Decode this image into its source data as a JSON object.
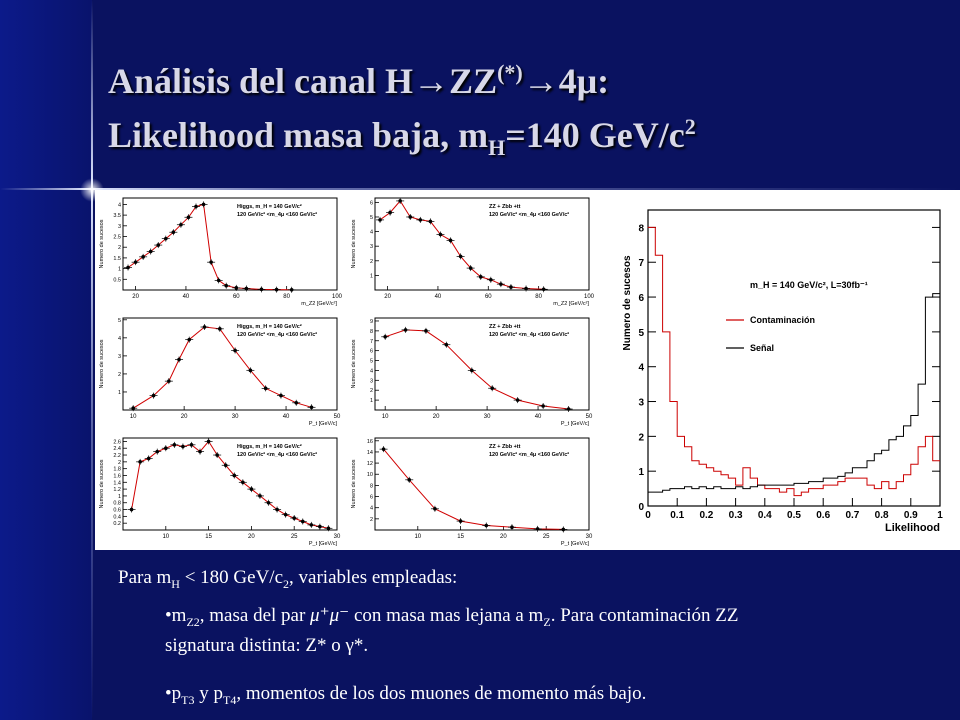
{
  "slide": {
    "title_line1_a": "Análisis del canal H→ZZ",
    "title_line1_sup": "(*)",
    "title_line1_b": "→4μ:",
    "title_line2_a": "Likelihood masa baja",
    "title_line2_b": ", m",
    "title_line2_sub": "H",
    "title_line2_c": "=140 GeV/c",
    "title_line2_sup": "2",
    "intro_a": "Para m",
    "intro_sub_h": "H",
    "intro_b": " < 180 GeV/c",
    "intro_sub_2": "2",
    "intro_c": ", variables empleadas:",
    "b1_a": "•m",
    "b1_sub": "Z2",
    "b1_b": ", masa del par ",
    "b1_mu": "μ⁺μ⁻",
    "b1_c": " con masa mas lejana a m",
    "b1_sub_z": "Z",
    "b1_d": ". Para contaminación ZZ",
    "b1_line2": "signatura distinta: Z* o γ*.",
    "b2_a": "•p",
    "b2_sub1": "T3",
    "b2_b": " y p",
    "b2_sub2": "T4",
    "b2_c": ", momentos de los dos muones de momento más bajo."
  },
  "chart_data": [
    {
      "type": "scatter",
      "panel": "sig-mz2",
      "legend": [
        "Higgs, m_H = 140 GeV/c²",
        "120 GeV/c² <m_4μ <160 GeV/c²"
      ],
      "ylabel": "Numero de sucesos",
      "xlabel": "m_Z2 [GeV/c²]",
      "xlim": [
        15,
        100
      ],
      "ylim": [
        0,
        4.3
      ],
      "xticks": [
        20,
        40,
        60,
        80,
        100
      ],
      "yticks": [
        0.5,
        1,
        1.5,
        2,
        2.5,
        3,
        3.5,
        4
      ],
      "x": [
        17,
        20,
        23,
        26,
        29,
        32,
        35,
        38,
        41,
        44,
        47,
        50,
        53,
        56,
        60,
        64,
        70,
        76,
        82
      ],
      "y": [
        1.05,
        1.3,
        1.55,
        1.8,
        2.1,
        2.4,
        2.7,
        3.05,
        3.4,
        3.9,
        4.0,
        1.3,
        0.45,
        0.2,
        0.1,
        0.07,
        0.03,
        0.02,
        0.01
      ]
    },
    {
      "type": "scatter",
      "panel": "bkg-mz2",
      "legend": [
        "ZZ + Zbb +tt",
        "120 GeV/c² <m_4μ <160 GeV/c²"
      ],
      "ylabel": "Numero de sucesos",
      "xlabel": "m_Z2 [GeV/c²]",
      "xlim": [
        15,
        100
      ],
      "ylim": [
        0,
        6.3
      ],
      "xticks": [
        20,
        40,
        60,
        80,
        100
      ],
      "yticks": [
        1,
        2,
        3,
        4,
        5,
        6
      ],
      "x": [
        17,
        21,
        25,
        29,
        33,
        37,
        41,
        45,
        49,
        53,
        57,
        61,
        65,
        69,
        75,
        82
      ],
      "y": [
        4.8,
        5.3,
        6.1,
        5.0,
        4.8,
        4.7,
        3.8,
        3.4,
        2.3,
        1.5,
        0.9,
        0.7,
        0.4,
        0.2,
        0.1,
        0.05
      ]
    },
    {
      "type": "scatter",
      "panel": "sig-pt3",
      "legend": [
        "Higgs, m_H = 140 GeV/c²",
        "120 GeV/c² <m_4μ <160 GeV/c²"
      ],
      "ylabel": "Numero de sucesos",
      "xlabel": "P_t [GeV/c]",
      "xlim": [
        8,
        50
      ],
      "ylim": [
        0,
        5.1
      ],
      "xticks": [
        10,
        20,
        30,
        40,
        50
      ],
      "yticks": [
        1,
        2,
        3,
        4,
        5
      ],
      "x": [
        10,
        14,
        17,
        19,
        21,
        24,
        27,
        30,
        33,
        36,
        39,
        42,
        45
      ],
      "y": [
        0.1,
        0.8,
        1.6,
        2.8,
        3.9,
        4.6,
        4.5,
        3.3,
        2.2,
        1.2,
        0.8,
        0.4,
        0.15
      ]
    },
    {
      "type": "scatter",
      "panel": "bkg-pt3",
      "legend": [
        "ZZ + Zbb +tt",
        "120 GeV/c² <m_4μ <160 GeV/c²"
      ],
      "ylabel": "Numero de sucesos",
      "xlabel": "P_t [GeV/c]",
      "xlim": [
        8,
        50
      ],
      "ylim": [
        0,
        9.3
      ],
      "xticks": [
        10,
        20,
        30,
        40,
        50
      ],
      "yticks": [
        1,
        2,
        3,
        4,
        5,
        6,
        7,
        8,
        9
      ],
      "x": [
        10,
        14,
        18,
        22,
        27,
        31,
        36,
        41,
        46
      ],
      "y": [
        7.4,
        8.1,
        8.0,
        6.6,
        4.0,
        2.2,
        1.0,
        0.4,
        0.1
      ]
    },
    {
      "type": "scatter",
      "panel": "sig-pt4",
      "legend": [
        "Higgs, m_H = 140 GeV/c²",
        "120 GeV/c² <m_4μ <160 GeV/c²"
      ],
      "ylabel": "Numero de sucesos",
      "xlabel": "P_t [GeV/c]",
      "xlim": [
        5,
        30
      ],
      "ylim": [
        0,
        2.7
      ],
      "xticks": [
        10,
        15,
        20,
        25,
        30
      ],
      "yticks": [
        0.2,
        0.4,
        0.6,
        0.8,
        1,
        1.2,
        1.4,
        1.6,
        1.8,
        2,
        2.2,
        2.4,
        2.6
      ],
      "x": [
        6,
        7,
        8,
        9,
        10,
        11,
        12,
        13,
        14,
        15,
        16,
        17,
        18,
        19,
        20,
        21,
        22,
        23,
        24,
        25,
        26,
        27,
        28,
        29
      ],
      "y": [
        0.6,
        2.0,
        2.1,
        2.3,
        2.4,
        2.5,
        2.45,
        2.5,
        2.3,
        2.6,
        2.2,
        1.9,
        1.6,
        1.4,
        1.2,
        1.0,
        0.8,
        0.6,
        0.45,
        0.35,
        0.25,
        0.15,
        0.1,
        0.05
      ]
    },
    {
      "type": "scatter",
      "panel": "bkg-pt4",
      "legend": [
        "ZZ + Zbb +tt",
        "120 GeV/c² <m_4μ <160 GeV/c²"
      ],
      "ylabel": "Numero de sucesos",
      "xlabel": "P_t [GeV/c]",
      "xlim": [
        5,
        30
      ],
      "ylim": [
        0,
        16.5
      ],
      "xticks": [
        10,
        15,
        20,
        25,
        30
      ],
      "yticks": [
        2,
        4,
        6,
        8,
        10,
        12,
        14,
        16
      ],
      "x": [
        6,
        9,
        12,
        15,
        18,
        21,
        24,
        27
      ],
      "y": [
        14.5,
        9,
        3.8,
        1.6,
        0.8,
        0.5,
        0.2,
        0.1
      ]
    },
    {
      "type": "line",
      "panel": "likelihood",
      "legend_header": "m_H = 140 GeV/c², L=30fb⁻¹",
      "ylabel": "Numero de sucesos",
      "xlabel": "Likelihood",
      "xlim": [
        0,
        1
      ],
      "ylim": [
        0,
        8.5
      ],
      "xticks": [
        "0",
        "0.1",
        "0.2",
        "0.3",
        "0.4",
        "0.5",
        "0.6",
        "0.7",
        "0.8",
        "0.9",
        "1"
      ],
      "yticks": [
        "0",
        "1",
        "2",
        "3",
        "4",
        "5",
        "6",
        "7",
        "8"
      ],
      "bin_width": 0.025,
      "series": [
        {
          "name": "Contaminación",
          "color": "#cc0000",
          "values": [
            8.0,
            7.2,
            5.0,
            3.0,
            2.0,
            1.7,
            1.3,
            1.2,
            1.1,
            1.0,
            0.9,
            0.8,
            0.6,
            1.1,
            0.8,
            0.6,
            0.5,
            0.5,
            0.4,
            0.5,
            0.3,
            0.4,
            0.5,
            0.5,
            0.6,
            0.6,
            0.7,
            0.8,
            0.8,
            0.8,
            0.6,
            0.5,
            0.7,
            0.5,
            0.7,
            0.9,
            1.2,
            1.7,
            2.0,
            1.3
          ]
        },
        {
          "name": "Señal",
          "color": "#000000",
          "values": [
            0.4,
            0.4,
            0.45,
            0.5,
            0.5,
            0.55,
            0.5,
            0.55,
            0.5,
            0.55,
            0.5,
            0.5,
            0.55,
            0.5,
            0.55,
            0.6,
            0.6,
            0.6,
            0.6,
            0.6,
            0.65,
            0.65,
            0.7,
            0.7,
            0.8,
            0.8,
            0.85,
            0.95,
            1.1,
            1.1,
            1.3,
            1.5,
            1.6,
            1.9,
            2.0,
            2.3,
            2.6,
            3.5,
            6.0,
            6.1
          ]
        }
      ]
    }
  ]
}
